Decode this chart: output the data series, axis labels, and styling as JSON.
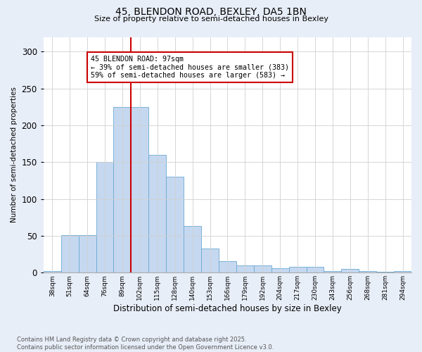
{
  "title_line1": "45, BLENDON ROAD, BEXLEY, DA5 1BN",
  "title_line2": "Size of property relative to semi-detached houses in Bexley",
  "xlabel": "Distribution of semi-detached houses by size in Bexley",
  "ylabel": "Number of semi-detached properties",
  "bar_labels": [
    "38sqm",
    "51sqm",
    "64sqm",
    "76sqm",
    "89sqm",
    "102sqm",
    "115sqm",
    "128sqm",
    "140sqm",
    "153sqm",
    "166sqm",
    "179sqm",
    "192sqm",
    "204sqm",
    "217sqm",
    "230sqm",
    "243sqm",
    "256sqm",
    "268sqm",
    "281sqm",
    "294sqm"
  ],
  "bar_heights": [
    2,
    51,
    51,
    150,
    225,
    225,
    160,
    130,
    63,
    33,
    16,
    10,
    10,
    6,
    8,
    8,
    2,
    5,
    2,
    1,
    2
  ],
  "bar_color": "#c5d8f0",
  "bar_edge_color": "#6aaad4",
  "vline_color": "#cc0000",
  "annotation_box_color": "#cc0000",
  "annotation_box_text": "45 BLENDON ROAD: 97sqm\n← 39% of semi-detached houses are smaller (383)\n59% of semi-detached houses are larger (583) →",
  "ylim": [
    0,
    320
  ],
  "yticks": [
    0,
    50,
    100,
    150,
    200,
    250,
    300
  ],
  "footnote": "Contains HM Land Registry data © Crown copyright and database right 2025.\nContains public sector information licensed under the Open Government Licence v3.0.",
  "bg_color": "#e8eef8",
  "plot_bg_color": "#ffffff",
  "grid_color": "#d0d0d0"
}
